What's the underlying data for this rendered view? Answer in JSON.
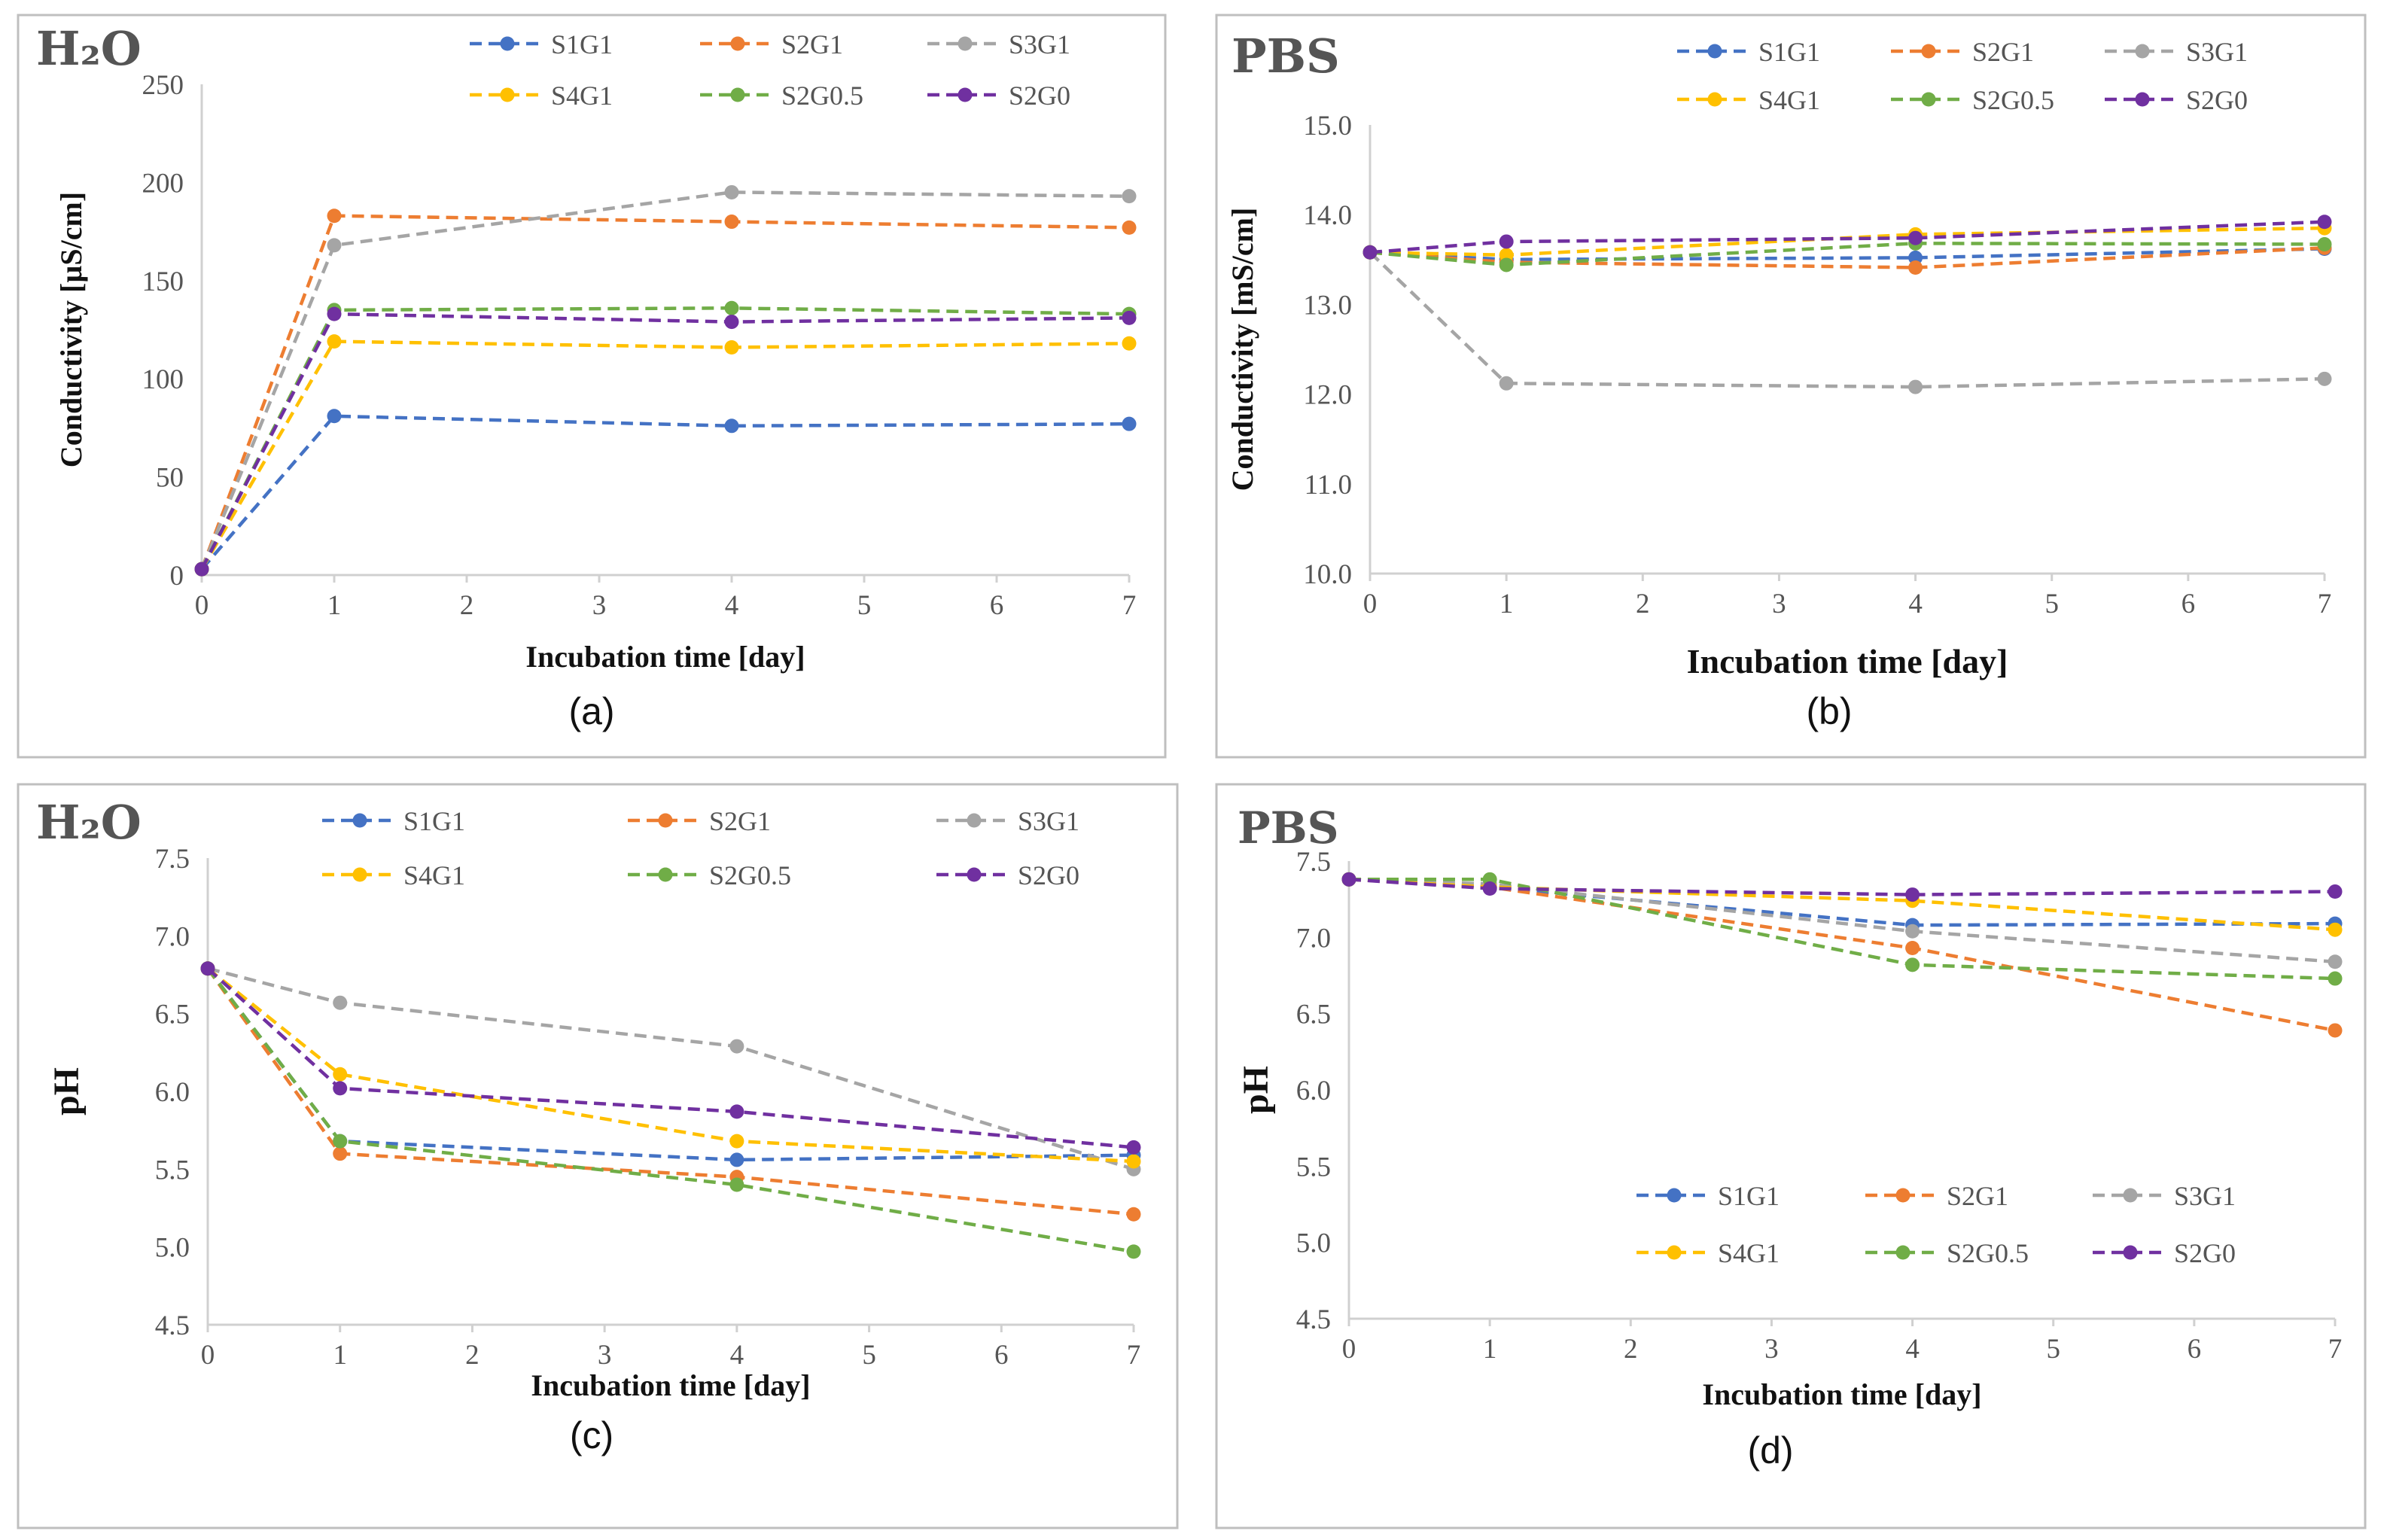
{
  "chart_data": [
    {
      "id": "a",
      "type": "line",
      "title": "H₂O",
      "caption": "(a)",
      "xlabel": "Incubation time [day]",
      "ylabel": "Conductivity [µS/cm]",
      "xlim": [
        0,
        7
      ],
      "ylim": [
        0,
        250
      ],
      "x_ticks": [
        0,
        1,
        2,
        3,
        4,
        5,
        6,
        7
      ],
      "y_ticks": [
        "0",
        "50",
        "100",
        "150",
        "200",
        "250"
      ],
      "x": [
        0,
        1,
        4,
        7
      ],
      "series": [
        {
          "name": "S1G1",
          "color": "#4472c4",
          "values": [
            3,
            81,
            76,
            77
          ]
        },
        {
          "name": "S2G1",
          "color": "#ed7d31",
          "values": [
            3,
            183,
            180,
            177
          ]
        },
        {
          "name": "S3G1",
          "color": "#a5a5a5",
          "values": [
            3,
            168,
            195,
            193
          ]
        },
        {
          "name": "S4G1",
          "color": "#ffc000",
          "values": [
            3,
            119,
            116,
            118
          ]
        },
        {
          "name": "S2G0.5",
          "color": "#70ad47",
          "values": [
            3,
            135,
            136,
            133
          ]
        },
        {
          "name": "S2G0",
          "color": "#7030a0",
          "values": [
            3,
            133,
            129,
            131
          ]
        }
      ],
      "legend": "top"
    },
    {
      "id": "b",
      "type": "line",
      "title": "PBS",
      "caption": "(b)",
      "xlabel": "Incubation time [day]",
      "ylabel": "Conductivity [mS/cm]",
      "xlim": [
        0,
        7
      ],
      "ylim": [
        10,
        15
      ],
      "x_ticks": [
        0,
        1,
        2,
        3,
        4,
        5,
        6,
        7
      ],
      "y_ticks": [
        "10.0",
        "11.0",
        "12.0",
        "13.0",
        "14.0",
        "15.0"
      ],
      "x": [
        0,
        1,
        4,
        7
      ],
      "series": [
        {
          "name": "S1G1",
          "color": "#4472c4",
          "values": [
            13.58,
            13.5,
            13.52,
            13.62
          ]
        },
        {
          "name": "S2G1",
          "color": "#ed7d31",
          "values": [
            13.58,
            13.47,
            13.41,
            13.63
          ]
        },
        {
          "name": "S3G1",
          "color": "#a5a5a5",
          "values": [
            13.58,
            12.12,
            12.08,
            12.17
          ]
        },
        {
          "name": "S4G1",
          "color": "#ffc000",
          "values": [
            13.58,
            13.55,
            13.78,
            13.85
          ]
        },
        {
          "name": "S2G0.5",
          "color": "#70ad47",
          "values": [
            13.58,
            13.44,
            13.68,
            13.67
          ]
        },
        {
          "name": "S2G0",
          "color": "#7030a0",
          "values": [
            13.58,
            13.7,
            13.74,
            13.92
          ]
        }
      ],
      "legend": "top"
    },
    {
      "id": "c",
      "type": "line",
      "title": "H₂O",
      "caption": "(c)",
      "xlabel": "Incubation time [day]",
      "ylabel": "pH",
      "xlim": [
        0,
        7
      ],
      "ylim": [
        4.5,
        7.5
      ],
      "x_ticks": [
        0,
        1,
        2,
        3,
        4,
        5,
        6,
        7
      ],
      "y_ticks": [
        "4.5",
        "5.0",
        "5.5",
        "6.0",
        "6.5",
        "7.0",
        "7.5"
      ],
      "x": [
        0,
        1,
        4,
        7
      ],
      "series": [
        {
          "name": "S1G1",
          "color": "#4472c4",
          "values": [
            6.79,
            5.68,
            5.56,
            5.59
          ]
        },
        {
          "name": "S2G1",
          "color": "#ed7d31",
          "values": [
            6.79,
            5.6,
            5.45,
            5.21
          ]
        },
        {
          "name": "S3G1",
          "color": "#a5a5a5",
          "values": [
            6.79,
            6.57,
            6.29,
            5.5
          ]
        },
        {
          "name": "S4G1",
          "color": "#ffc000",
          "values": [
            6.79,
            6.11,
            5.68,
            5.55
          ]
        },
        {
          "name": "S2G0.5",
          "color": "#70ad47",
          "values": [
            6.79,
            5.68,
            5.4,
            4.97
          ]
        },
        {
          "name": "S2G0",
          "color": "#7030a0",
          "values": [
            6.79,
            6.02,
            5.87,
            5.64
          ]
        }
      ],
      "legend": "top"
    },
    {
      "id": "d",
      "type": "line",
      "title": "PBS",
      "caption": "(d)",
      "xlabel": "Incubation time [day]",
      "ylabel": "pH",
      "xlim": [
        0,
        7
      ],
      "ylim": [
        4.5,
        7.5
      ],
      "x_ticks": [
        0,
        1,
        2,
        3,
        4,
        5,
        6,
        7
      ],
      "y_ticks": [
        "4.5",
        "5.0",
        "5.5",
        "6.0",
        "6.5",
        "7.0",
        "7.5"
      ],
      "x": [
        0,
        1,
        4,
        7
      ],
      "series": [
        {
          "name": "S1G1",
          "color": "#4472c4",
          "values": [
            7.38,
            7.33,
            7.08,
            7.09
          ]
        },
        {
          "name": "S2G1",
          "color": "#ed7d31",
          "values": [
            7.38,
            7.33,
            6.93,
            6.39
          ]
        },
        {
          "name": "S3G1",
          "color": "#a5a5a5",
          "values": [
            7.38,
            7.35,
            7.04,
            6.84
          ]
        },
        {
          "name": "S4G1",
          "color": "#ffc000",
          "values": [
            7.38,
            7.33,
            7.24,
            7.05
          ]
        },
        {
          "name": "S2G0.5",
          "color": "#70ad47",
          "values": [
            7.38,
            7.38,
            6.82,
            6.73
          ]
        },
        {
          "name": "S2G0",
          "color": "#7030a0",
          "values": [
            7.38,
            7.32,
            7.28,
            7.3
          ]
        }
      ],
      "legend": "bottom-right"
    }
  ]
}
